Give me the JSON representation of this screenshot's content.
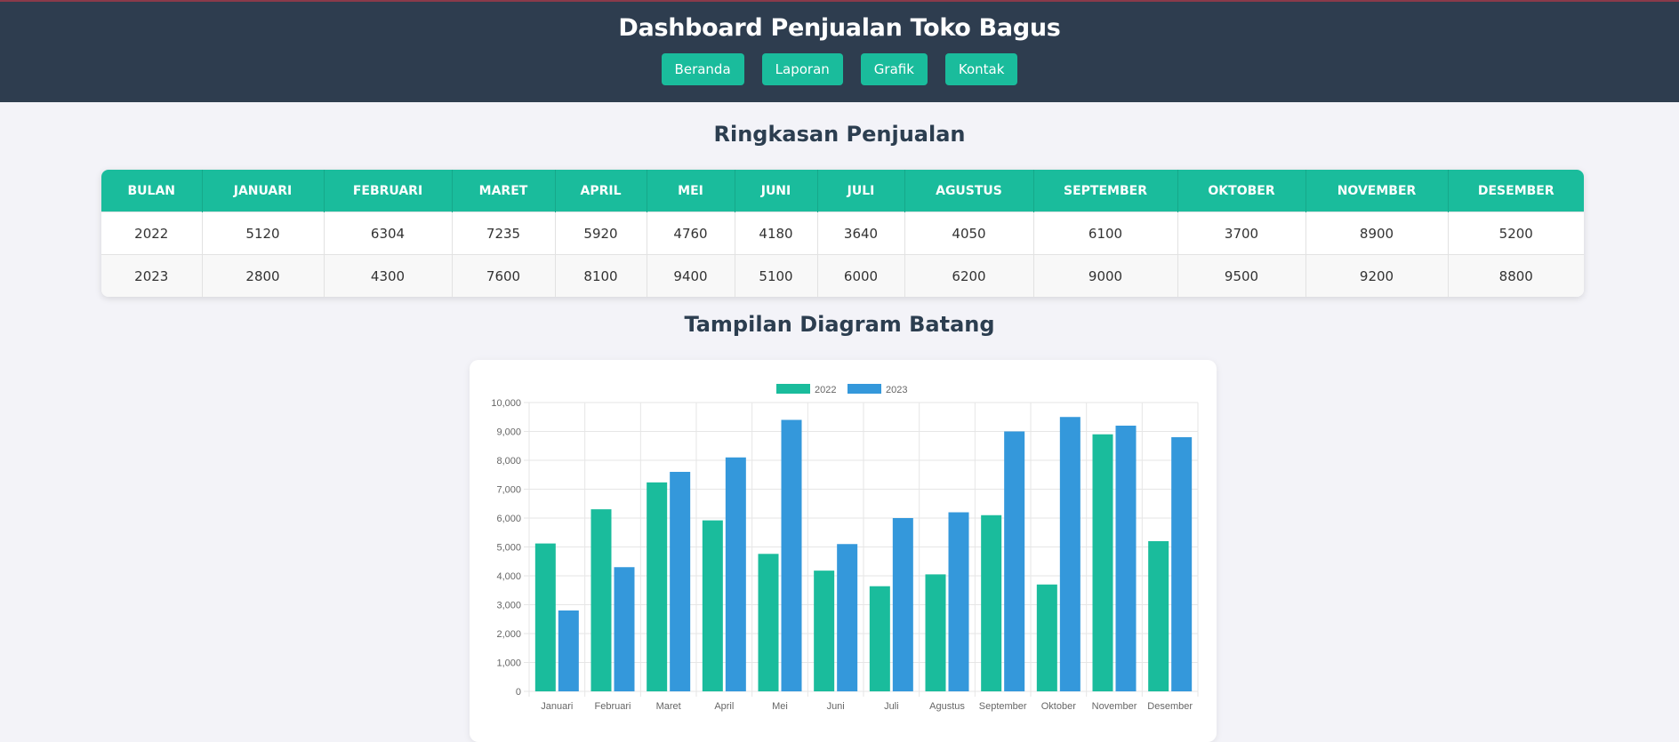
{
  "header": {
    "title": "Dashboard Penjualan Toko Bagus",
    "nav": [
      "Beranda",
      "Laporan",
      "Grafik",
      "Kontak"
    ]
  },
  "summary": {
    "title": "Ringkasan Penjualan",
    "columns": [
      "BULAN",
      "JANUARI",
      "FEBRUARI",
      "MARET",
      "APRIL",
      "MEI",
      "JUNI",
      "JULI",
      "AGUSTUS",
      "SEPTEMBER",
      "OKTOBER",
      "NOVEMBER",
      "DESEMBER"
    ],
    "rows": [
      [
        "2022",
        "5120",
        "6304",
        "7235",
        "5920",
        "4760",
        "4180",
        "3640",
        "4050",
        "6100",
        "3700",
        "8900",
        "5200"
      ],
      [
        "2023",
        "2800",
        "4300",
        "7600",
        "8100",
        "9400",
        "5100",
        "6000",
        "6200",
        "9000",
        "9500",
        "9200",
        "8800"
      ]
    ]
  },
  "chart_section": {
    "title": "Tampilan Diagram Batang"
  },
  "colors": {
    "header_bg": "#2e3d4f",
    "accent": "#1abc9c",
    "series_2023": "#3498db"
  },
  "chart_data": {
    "type": "bar",
    "categories": [
      "Januari",
      "Februari",
      "Maret",
      "April",
      "Mei",
      "Juni",
      "Juli",
      "Agustus",
      "September",
      "Oktober",
      "November",
      "Desember"
    ],
    "series": [
      {
        "name": "2022",
        "color": "#1abc9c",
        "values": [
          5120,
          6304,
          7235,
          5920,
          4760,
          4180,
          3640,
          4050,
          6100,
          3700,
          8900,
          5200
        ]
      },
      {
        "name": "2023",
        "color": "#3498db",
        "values": [
          2800,
          4300,
          7600,
          8100,
          9400,
          5100,
          6000,
          6200,
          9000,
          9500,
          9200,
          8800
        ]
      }
    ],
    "ylim": [
      0,
      10000
    ],
    "yticks": [
      "0",
      "1,000",
      "2,000",
      "3,000",
      "4,000",
      "5,000",
      "6,000",
      "7,000",
      "8,000",
      "9,000",
      "10,000"
    ],
    "grid": true,
    "legend": "top-center"
  }
}
